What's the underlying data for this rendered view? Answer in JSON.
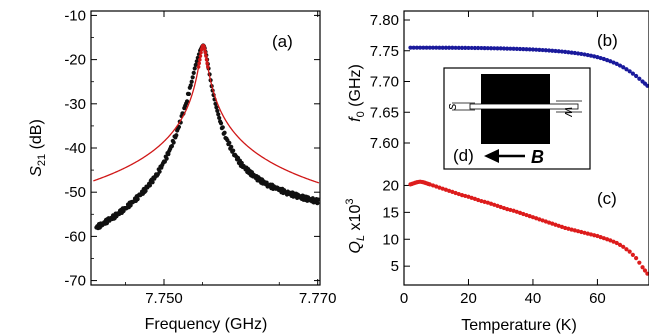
{
  "chart_data": [
    {
      "id": "a",
      "type": "scatter",
      "panel_label": "(a)",
      "xlabel": "Frequency (GHz)",
      "ylabel_main": "S",
      "ylabel_sub": "21",
      "ylabel_unit": "(dB)",
      "xlim": [
        7.7405,
        7.7703
      ],
      "ylim": [
        -71,
        -9
      ],
      "xticks": [
        {
          "v": 7.75,
          "label": "7.750"
        },
        {
          "v": 7.77,
          "label": "7.770"
        }
      ],
      "yticks": [
        {
          "v": -10,
          "label": "-10"
        },
        {
          "v": -20,
          "label": "-20"
        },
        {
          "v": -30,
          "label": "-30"
        },
        {
          "v": -40,
          "label": "-40"
        },
        {
          "v": -50,
          "label": "-50"
        },
        {
          "v": -60,
          "label": "-60"
        },
        {
          "v": -70,
          "label": "-70"
        }
      ],
      "resonance": {
        "f0": 7.7551,
        "peak_db": -16.8
      },
      "series": [
        {
          "kind": "points",
          "color": "#111111",
          "x": [
            7.7412,
            7.742,
            7.7428,
            7.7436,
            7.7444,
            7.7452,
            7.746,
            7.7468,
            7.7476,
            7.7484,
            7.7492,
            7.75,
            7.7508,
            7.7516,
            7.7524,
            7.753,
            7.7536,
            7.754,
            7.7544,
            7.7547,
            7.7549,
            7.755,
            7.7551,
            7.7552,
            7.7553,
            7.7555,
            7.7558,
            7.7562,
            7.7567,
            7.7573,
            7.758,
            7.759,
            7.76,
            7.7612,
            7.7624,
            7.7636,
            7.7648,
            7.766,
            7.7672,
            7.7684,
            7.7696,
            7.7702
          ],
          "y": [
            -58.0,
            -57.2,
            -56.3,
            -55.4,
            -54.4,
            -53.3,
            -52.1,
            -50.8,
            -49.3,
            -47.6,
            -45.6,
            -43.2,
            -40.3,
            -36.8,
            -32.6,
            -29.0,
            -25.0,
            -22.0,
            -19.6,
            -18.0,
            -17.3,
            -17.0,
            -16.8,
            -17.0,
            -17.5,
            -19.0,
            -22.0,
            -26.0,
            -30.0,
            -34.0,
            -37.5,
            -41.0,
            -43.6,
            -45.6,
            -47.2,
            -48.4,
            -49.3,
            -50.1,
            -50.8,
            -51.4,
            -51.9,
            -52.1
          ]
        },
        {
          "kind": "fit",
          "color": "#d01818",
          "fit_floor_db": -55.5
        }
      ]
    },
    {
      "id": "b",
      "type": "scatter",
      "panel_label": "(b)",
      "ylabel_main": "f",
      "ylabel_sub": "0",
      "ylabel_unit": "(GHz)",
      "xlim": [
        0,
        76
      ],
      "ylim": [
        7.6,
        7.8
      ],
      "yticks": [
        {
          "v": 7.8,
          "label": "7.80"
        },
        {
          "v": 7.75,
          "label": "7.75"
        },
        {
          "v": 7.7,
          "label": "7.70"
        },
        {
          "v": 7.65,
          "label": "7.65"
        },
        {
          "v": 7.6,
          "label": "7.60"
        }
      ],
      "series": [
        {
          "kind": "points",
          "color": "#1a1a9c",
          "x": [
            2,
            4,
            6,
            8,
            10,
            12,
            14,
            16,
            18,
            20,
            22,
            24,
            26,
            28,
            30,
            32,
            34,
            36,
            38,
            40,
            42,
            44,
            46,
            48,
            50,
            52,
            54,
            56,
            58,
            60,
            62,
            64,
            66,
            68,
            70,
            72,
            74,
            75.5
          ],
          "y": [
            7.755,
            7.755,
            7.755,
            7.755,
            7.755,
            7.7549,
            7.7549,
            7.7548,
            7.7547,
            7.7546,
            7.7545,
            7.7544,
            7.7542,
            7.754,
            7.7538,
            7.7535,
            7.7532,
            7.7528,
            7.7524,
            7.752,
            7.7514,
            7.7508,
            7.75,
            7.7492,
            7.7482,
            7.747,
            7.7456,
            7.744,
            7.742,
            7.7396,
            7.7366,
            7.733,
            7.7286,
            7.7232,
            7.7166,
            7.709,
            7.7,
            7.693
          ]
        }
      ]
    },
    {
      "id": "c",
      "type": "scatter",
      "panel_label": "(c)",
      "xlabel": "Temperature (K)",
      "ylabel_main": "Q",
      "ylabel_sub": "L",
      "ylabel_suffix": " x10",
      "ylabel_sup": "3",
      "xlim": [
        0,
        76
      ],
      "ylim": [
        1.5,
        22.5
      ],
      "xticks": [
        {
          "v": 0,
          "label": "0"
        },
        {
          "v": 20,
          "label": "20"
        },
        {
          "v": 40,
          "label": "40"
        },
        {
          "v": 60,
          "label": "60"
        }
      ],
      "yticks": [
        {
          "v": 20,
          "label": "20"
        },
        {
          "v": 15,
          "label": "15"
        },
        {
          "v": 10,
          "label": "10"
        },
        {
          "v": 5,
          "label": "5"
        }
      ],
      "series": [
        {
          "kind": "points",
          "color": "#dd1c1c",
          "x": [
            2,
            3,
            4,
            5,
            6,
            7,
            8,
            10,
            12,
            14,
            16,
            18,
            20,
            22,
            24,
            26,
            28,
            30,
            32,
            34,
            36,
            38,
            40,
            42,
            44,
            46,
            48,
            50,
            52,
            54,
            56,
            58,
            60,
            62,
            64,
            66,
            68,
            70,
            72,
            74,
            75.5
          ],
          "y": [
            20.2,
            20.4,
            20.6,
            20.7,
            20.6,
            20.4,
            20.2,
            19.8,
            19.4,
            19.0,
            18.6,
            18.2,
            17.9,
            17.5,
            17.1,
            16.8,
            16.4,
            16.0,
            15.6,
            15.3,
            14.9,
            14.5,
            14.1,
            13.7,
            13.3,
            12.9,
            12.5,
            12.1,
            11.8,
            11.5,
            11.2,
            10.9,
            10.6,
            10.2,
            9.8,
            9.3,
            8.6,
            7.7,
            6.5,
            4.8,
            3.6
          ]
        }
      ]
    }
  ],
  "inset": {
    "panel_label": "(d)",
    "s_label": "s",
    "w_label": "w",
    "b_label": "B"
  }
}
